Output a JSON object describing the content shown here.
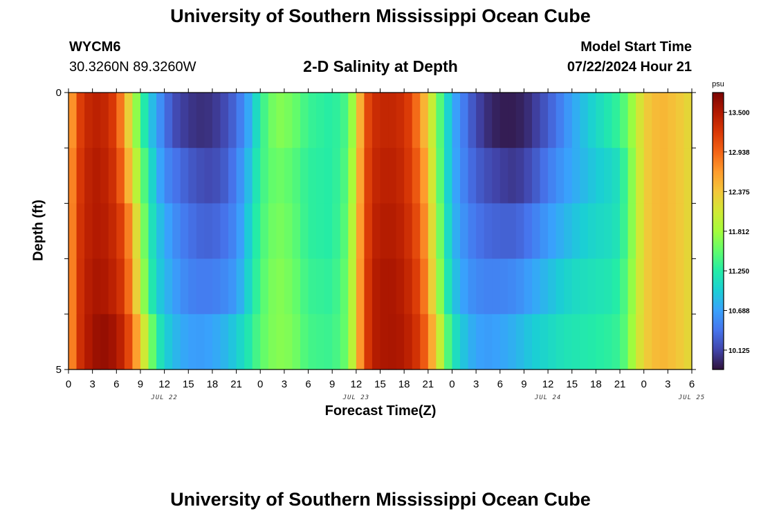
{
  "page": {
    "title_top": "University of Southern Mississippi Ocean Cube",
    "title_bottom": "University of Southern Mississippi Ocean Cube",
    "station_id": "WYCM6",
    "station_coords": "30.3260N  89.3260W",
    "plot_title": "2-D Salinity at Depth",
    "model_start_label": "Model Start Time",
    "model_start_value": "07/22/2024 Hour 21"
  },
  "chart_data": {
    "type": "heatmap",
    "title": "2-D Salinity at Depth",
    "xlabel": "Forecast Time(Z)",
    "ylabel": "Depth (ft)",
    "colorbar_label": "psu",
    "colorbar_ticks": [
      13.5,
      12.938,
      12.375,
      11.812,
      11.25,
      10.688,
      10.125
    ],
    "colorbar_tick_labels": [
      "13.500",
      "12.938",
      "12.375",
      "11.812",
      "11.250",
      "10.688",
      "10.125"
    ],
    "vmin": 9.85,
    "vmax": 13.78,
    "colormap": [
      "#30123b",
      "#4145ab",
      "#4675ed",
      "#39a2fc",
      "#1bcfd4",
      "#24eca6",
      "#61fc6c",
      "#a4fc3b",
      "#d1e834",
      "#f3c63a",
      "#fe9b2d",
      "#f36315",
      "#d93806",
      "#b11901",
      "#7a0403"
    ],
    "ylim": [
      0,
      5
    ],
    "y_tick_labels": [
      "0",
      "5"
    ],
    "x_tick_labels": [
      "0",
      "3",
      "6",
      "9",
      "12",
      "15",
      "18",
      "21",
      "0",
      "3",
      "6",
      "9",
      "12",
      "15",
      "18",
      "21",
      "0",
      "3",
      "6",
      "9",
      "12",
      "15",
      "18",
      "21",
      "0",
      "3",
      "6"
    ],
    "date_labels": [
      {
        "label": "JUL 22",
        "hour": 12
      },
      {
        "label": "JUL 23",
        "hour": 36
      },
      {
        "label": "JUL 24",
        "hour": 60
      },
      {
        "label": "JUL 25",
        "hour": 78
      }
    ],
    "x_hours": [
      0,
      78
    ],
    "depth_rows": [
      0.5,
      1.5,
      2.5,
      3.5,
      4.5
    ],
    "rows": [
      {
        "depth": 0.5,
        "knots": [
          [
            0,
            12.3
          ],
          [
            1,
            13.1
          ],
          [
            3,
            13.45
          ],
          [
            5,
            13.35
          ],
          [
            6,
            13.1
          ],
          [
            7,
            12.6
          ],
          [
            8,
            12.0
          ],
          [
            9,
            11.45
          ],
          [
            10,
            11.0
          ],
          [
            11,
            10.7
          ],
          [
            12,
            10.45
          ],
          [
            13,
            10.2
          ],
          [
            15,
            10.05
          ],
          [
            17,
            10.0
          ],
          [
            19,
            10.1
          ],
          [
            21,
            10.35
          ],
          [
            22,
            10.6
          ],
          [
            23,
            10.85
          ],
          [
            24,
            11.3
          ],
          [
            26,
            11.7
          ],
          [
            28,
            11.6
          ],
          [
            30,
            11.35
          ],
          [
            33,
            11.25
          ],
          [
            35,
            11.45
          ],
          [
            36,
            12.1
          ],
          [
            37,
            12.95
          ],
          [
            38,
            13.3
          ],
          [
            40,
            13.4
          ],
          [
            42,
            13.3
          ],
          [
            43,
            13.1
          ],
          [
            44,
            12.7
          ],
          [
            45,
            12.3
          ],
          [
            46,
            11.75
          ],
          [
            47,
            11.2
          ],
          [
            48,
            10.8
          ],
          [
            49,
            10.55
          ],
          [
            50,
            10.35
          ],
          [
            51,
            10.15
          ],
          [
            53,
            9.95
          ],
          [
            55,
            9.9
          ],
          [
            57,
            9.95
          ],
          [
            59,
            10.15
          ],
          [
            61,
            10.4
          ],
          [
            63,
            10.7
          ],
          [
            65,
            10.95
          ],
          [
            67,
            11.15
          ],
          [
            69,
            11.35
          ],
          [
            70,
            11.6
          ],
          [
            71,
            11.95
          ],
          [
            72,
            12.3
          ],
          [
            74,
            12.5
          ],
          [
            76,
            12.4
          ],
          [
            78,
            12.2
          ]
        ]
      },
      {
        "depth": 1.5,
        "knots": [
          [
            0,
            12.4
          ],
          [
            1,
            13.15
          ],
          [
            3,
            13.5
          ],
          [
            5,
            13.4
          ],
          [
            6,
            13.2
          ],
          [
            7,
            12.8
          ],
          [
            8,
            12.2
          ],
          [
            9,
            11.7
          ],
          [
            10,
            11.2
          ],
          [
            11,
            10.85
          ],
          [
            12,
            10.55
          ],
          [
            14,
            10.35
          ],
          [
            16,
            10.2
          ],
          [
            18,
            10.15
          ],
          [
            20,
            10.3
          ],
          [
            22,
            10.7
          ],
          [
            23,
            11.0
          ],
          [
            24,
            11.35
          ],
          [
            26,
            11.6
          ],
          [
            28,
            11.5
          ],
          [
            30,
            11.3
          ],
          [
            33,
            11.25
          ],
          [
            35,
            11.5
          ],
          [
            36,
            12.2
          ],
          [
            37,
            13.0
          ],
          [
            38,
            13.35
          ],
          [
            40,
            13.45
          ],
          [
            42,
            13.35
          ],
          [
            44,
            12.9
          ],
          [
            45,
            12.4
          ],
          [
            46,
            11.8
          ],
          [
            47,
            11.2
          ],
          [
            48,
            10.8
          ],
          [
            50,
            10.4
          ],
          [
            52,
            10.2
          ],
          [
            54,
            10.1
          ],
          [
            56,
            10.05
          ],
          [
            58,
            10.2
          ],
          [
            60,
            10.45
          ],
          [
            62,
            10.65
          ],
          [
            64,
            10.8
          ],
          [
            66,
            10.95
          ],
          [
            68,
            11.05
          ],
          [
            69,
            11.15
          ],
          [
            70,
            11.5
          ],
          [
            71,
            11.9
          ],
          [
            72,
            12.3
          ],
          [
            74,
            12.5
          ],
          [
            76,
            12.4
          ],
          [
            78,
            12.2
          ]
        ]
      },
      {
        "depth": 2.5,
        "knots": [
          [
            0,
            12.4
          ],
          [
            1,
            13.2
          ],
          [
            3,
            13.5
          ],
          [
            5,
            13.45
          ],
          [
            7,
            13.1
          ],
          [
            8,
            12.5
          ],
          [
            9,
            11.9
          ],
          [
            10,
            11.3
          ],
          [
            11,
            10.95
          ],
          [
            13,
            10.6
          ],
          [
            15,
            10.4
          ],
          [
            17,
            10.3
          ],
          [
            19,
            10.35
          ],
          [
            21,
            10.55
          ],
          [
            22,
            10.8
          ],
          [
            23,
            11.1
          ],
          [
            24,
            11.4
          ],
          [
            26,
            11.65
          ],
          [
            28,
            11.55
          ],
          [
            30,
            11.3
          ],
          [
            33,
            11.25
          ],
          [
            35,
            11.55
          ],
          [
            36,
            12.3
          ],
          [
            37,
            13.0
          ],
          [
            38,
            13.4
          ],
          [
            40,
            13.5
          ],
          [
            42,
            13.4
          ],
          [
            44,
            13.0
          ],
          [
            45,
            12.5
          ],
          [
            46,
            11.9
          ],
          [
            47,
            11.3
          ],
          [
            48,
            10.85
          ],
          [
            50,
            10.5
          ],
          [
            52,
            10.35
          ],
          [
            54,
            10.3
          ],
          [
            56,
            10.3
          ],
          [
            58,
            10.45
          ],
          [
            60,
            10.65
          ],
          [
            62,
            10.8
          ],
          [
            64,
            10.95
          ],
          [
            66,
            11.05
          ],
          [
            68,
            11.1
          ],
          [
            69,
            11.2
          ],
          [
            70,
            11.5
          ],
          [
            71,
            11.9
          ],
          [
            72,
            12.3
          ],
          [
            74,
            12.5
          ],
          [
            76,
            12.4
          ],
          [
            78,
            12.2
          ]
        ]
      },
      {
        "depth": 3.5,
        "knots": [
          [
            0,
            12.4
          ],
          [
            1,
            13.2
          ],
          [
            3,
            13.55
          ],
          [
            5,
            13.5
          ],
          [
            7,
            13.2
          ],
          [
            8,
            12.6
          ],
          [
            9,
            12.0
          ],
          [
            10,
            11.4
          ],
          [
            11,
            11.0
          ],
          [
            13,
            10.7
          ],
          [
            15,
            10.5
          ],
          [
            17,
            10.45
          ],
          [
            19,
            10.5
          ],
          [
            21,
            10.65
          ],
          [
            22,
            10.9
          ],
          [
            23,
            11.15
          ],
          [
            24,
            11.45
          ],
          [
            26,
            11.7
          ],
          [
            28,
            11.6
          ],
          [
            30,
            11.35
          ],
          [
            33,
            11.3
          ],
          [
            35,
            11.6
          ],
          [
            36,
            12.3
          ],
          [
            37,
            13.05
          ],
          [
            38,
            13.45
          ],
          [
            40,
            13.55
          ],
          [
            42,
            13.45
          ],
          [
            44,
            13.1
          ],
          [
            45,
            12.6
          ],
          [
            46,
            12.0
          ],
          [
            47,
            11.4
          ],
          [
            48,
            10.95
          ],
          [
            50,
            10.6
          ],
          [
            52,
            10.5
          ],
          [
            54,
            10.5
          ],
          [
            56,
            10.55
          ],
          [
            58,
            10.7
          ],
          [
            60,
            10.85
          ],
          [
            62,
            11.0
          ],
          [
            64,
            11.1
          ],
          [
            66,
            11.15
          ],
          [
            68,
            11.2
          ],
          [
            69,
            11.3
          ],
          [
            70,
            11.55
          ],
          [
            71,
            11.95
          ],
          [
            72,
            12.3
          ],
          [
            74,
            12.5
          ],
          [
            76,
            12.4
          ],
          [
            78,
            12.2
          ]
        ]
      },
      {
        "depth": 4.5,
        "knots": [
          [
            0,
            12.4
          ],
          [
            1,
            13.2
          ],
          [
            3,
            13.6
          ],
          [
            5,
            13.65
          ],
          [
            7,
            13.35
          ],
          [
            8,
            12.9
          ],
          [
            9,
            12.35
          ],
          [
            10,
            11.8
          ],
          [
            11,
            11.3
          ],
          [
            12,
            11.0
          ],
          [
            14,
            10.75
          ],
          [
            16,
            10.65
          ],
          [
            18,
            10.7
          ],
          [
            20,
            10.85
          ],
          [
            22,
            11.1
          ],
          [
            24,
            11.5
          ],
          [
            26,
            11.7
          ],
          [
            28,
            11.65
          ],
          [
            30,
            11.4
          ],
          [
            33,
            11.35
          ],
          [
            35,
            11.6
          ],
          [
            36,
            12.3
          ],
          [
            37,
            13.05
          ],
          [
            38,
            13.45
          ],
          [
            40,
            13.55
          ],
          [
            42,
            13.5
          ],
          [
            44,
            13.2
          ],
          [
            45,
            12.8
          ],
          [
            46,
            12.3
          ],
          [
            47,
            11.7
          ],
          [
            48,
            11.2
          ],
          [
            50,
            10.8
          ],
          [
            52,
            10.65
          ],
          [
            54,
            10.7
          ],
          [
            56,
            10.8
          ],
          [
            58,
            10.95
          ],
          [
            60,
            11.05
          ],
          [
            62,
            11.15
          ],
          [
            64,
            11.2
          ],
          [
            66,
            11.25
          ],
          [
            68,
            11.3
          ],
          [
            69,
            11.35
          ],
          [
            70,
            11.6
          ],
          [
            71,
            12.0
          ],
          [
            72,
            12.3
          ],
          [
            74,
            12.5
          ],
          [
            76,
            12.4
          ],
          [
            78,
            12.2
          ]
        ]
      }
    ]
  }
}
